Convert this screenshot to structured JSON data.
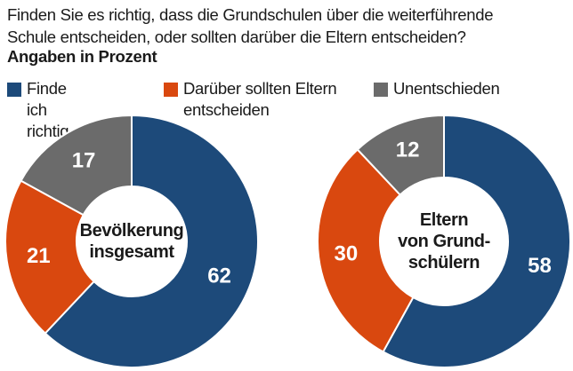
{
  "header": {
    "question_line1": "Finden Sie es richtig, dass die Grundschulen über die weiterführende",
    "question_line2": "Schule entscheiden, oder sollten darüber die Eltern entscheiden?",
    "subtitle": "Angaben in Prozent"
  },
  "legend": [
    {
      "label": "Finde ich richtig",
      "color": "#1d4a7a"
    },
    {
      "label": "Darüber sollten Eltern entscheiden",
      "color": "#d9480f"
    },
    {
      "label": "Unentschieden",
      "color": "#6b6b6b"
    }
  ],
  "chart_data": [
    {
      "type": "pie",
      "donut": true,
      "center_label": [
        "Bevölkerung",
        "insgesamt"
      ],
      "categories": [
        "Finde ich richtig",
        "Darüber sollten Eltern entscheiden",
        "Unentschieden"
      ],
      "values": [
        62,
        21,
        17
      ],
      "colors": [
        "#1d4a7a",
        "#d9480f",
        "#6b6b6b"
      ],
      "start": "12 o'clock",
      "direction": "clockwise"
    },
    {
      "type": "pie",
      "donut": true,
      "center_label": [
        "Eltern",
        "von Grund-",
        "schülern"
      ],
      "categories": [
        "Finde ich richtig",
        "Darüber sollten Eltern entscheiden",
        "Unentschieden"
      ],
      "values": [
        58,
        30,
        12
      ],
      "colors": [
        "#1d4a7a",
        "#d9480f",
        "#6b6b6b"
      ],
      "start": "12 o'clock",
      "direction": "clockwise"
    }
  ]
}
